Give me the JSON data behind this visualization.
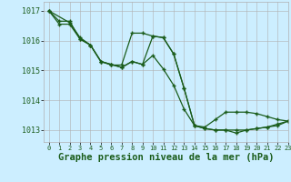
{
  "bg_color": "#cceeff",
  "grid_color": "#b0b0b0",
  "line_color": "#1a5c1a",
  "xlabel": "Graphe pression niveau de la mer (hPa)",
  "xlabel_fontsize": 7.5,
  "ylim": [
    1012.6,
    1017.3
  ],
  "xlim": [
    -0.5,
    23
  ],
  "yticks": [
    1013,
    1014,
    1015,
    1016,
    1017
  ],
  "xticks": [
    0,
    1,
    2,
    3,
    4,
    5,
    6,
    7,
    8,
    9,
    10,
    11,
    12,
    13,
    14,
    15,
    16,
    17,
    18,
    19,
    20,
    21,
    22,
    23
  ],
  "line1_x": [
    0,
    1,
    2,
    3,
    4,
    5,
    6,
    7,
    8,
    9,
    10,
    11,
    12,
    13,
    14,
    15,
    16,
    17,
    18,
    19,
    20,
    21,
    22,
    23
  ],
  "line1_y": [
    1017.0,
    1016.65,
    1016.65,
    1016.05,
    1015.85,
    1015.3,
    1015.18,
    1015.18,
    1016.25,
    1016.25,
    1016.15,
    1016.1,
    1015.55,
    1014.4,
    1013.15,
    1013.05,
    1013.0,
    1013.0,
    1012.9,
    1013.0,
    1013.05,
    1013.1,
    1013.15,
    1013.3
  ],
  "line2_x": [
    0,
    1,
    2,
    3,
    4,
    5,
    6,
    7,
    8,
    9,
    10,
    11,
    12,
    13,
    14,
    15,
    16,
    17,
    18,
    19,
    20,
    21,
    22,
    23
  ],
  "line2_y": [
    1017.0,
    1016.55,
    1016.55,
    1016.05,
    1015.85,
    1015.3,
    1015.2,
    1015.1,
    1015.3,
    1015.2,
    1015.5,
    1015.05,
    1014.5,
    1013.7,
    1013.15,
    1013.05,
    1013.0,
    1013.0,
    1013.0,
    1013.0,
    1013.05,
    1013.1,
    1013.2,
    1013.3
  ],
  "line3_x": [
    0,
    2,
    3,
    4,
    5,
    6,
    7,
    8,
    9,
    10,
    11,
    12,
    13,
    14,
    15,
    16,
    17,
    18,
    19,
    20,
    21,
    22,
    23
  ],
  "line3_y": [
    1017.0,
    1016.6,
    1016.1,
    1015.85,
    1015.3,
    1015.2,
    1015.1,
    1015.3,
    1015.2,
    1016.15,
    1016.1,
    1015.55,
    1014.4,
    1013.15,
    1013.1,
    1013.35,
    1013.6,
    1013.6,
    1013.6,
    1013.55,
    1013.45,
    1013.35,
    1013.3
  ]
}
